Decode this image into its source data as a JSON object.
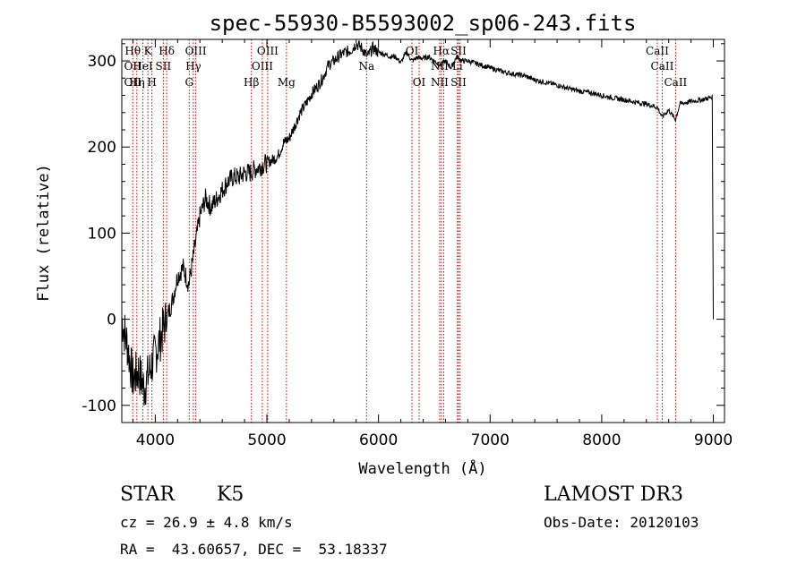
{
  "chart_data": {
    "type": "line",
    "title": "spec-55930-B5593002_sp06-243.fits",
    "xlabel": "Wavelength (Å)",
    "ylabel": "Flux (relative)",
    "xlim": [
      3700,
      9100
    ],
    "ylim": [
      -120,
      325
    ],
    "x_ticks": [
      4000,
      5000,
      6000,
      7000,
      8000,
      9000
    ],
    "y_ticks": [
      -100,
      0,
      100,
      200,
      300
    ],
    "grid": false,
    "line_color": "#000000",
    "marker_color": "#cc0000",
    "series": [
      {
        "x": [
          3700,
          3750,
          3800,
          3850,
          3900,
          3950,
          4000,
          4050,
          4100,
          4150,
          4200,
          4250,
          4300,
          4350,
          4400,
          4450,
          4500,
          4550,
          4600,
          4650,
          4700,
          4750,
          4800,
          4850,
          4900,
          4950,
          5000,
          5050,
          5100,
          5150,
          5200,
          5250,
          5300,
          5350,
          5400,
          5450,
          5500,
          5550,
          5600,
          5650,
          5700,
          5750,
          5800,
          5850,
          5900,
          5950,
          6000,
          6050,
          6100,
          6150,
          6200,
          6250,
          6300,
          6350,
          6400,
          6450,
          6500,
          6550,
          6600,
          6650,
          6700,
          6750,
          6800,
          6850,
          6900,
          6950,
          7000,
          7100,
          7200,
          7300,
          7400,
          7500,
          7600,
          7700,
          7800,
          7900,
          8000,
          8100,
          8200,
          8300,
          8400,
          8500,
          8540,
          8600,
          8660,
          8700,
          8800,
          8900,
          8990,
          9000
        ],
        "y": [
          0,
          -30,
          -70,
          -60,
          -80,
          -60,
          -40,
          -20,
          0,
          20,
          50,
          60,
          40,
          80,
          120,
          140,
          130,
          140,
          150,
          160,
          165,
          165,
          170,
          170,
          175,
          178,
          182,
          185,
          190,
          205,
          210,
          225,
          240,
          250,
          262,
          270,
          280,
          295,
          300,
          306,
          310,
          312,
          320,
          315,
          305,
          315,
          310,
          308,
          305,
          305,
          298,
          310,
          300,
          304,
          303,
          305,
          300,
          295,
          300,
          292,
          305,
          300,
          300,
          298,
          296,
          294,
          292,
          288,
          285,
          283,
          278,
          275,
          272,
          268,
          265,
          263,
          260,
          257,
          255,
          252,
          250,
          246,
          235,
          243,
          232,
          250,
          253,
          255,
          258,
          0
        ]
      }
    ],
    "line_markers": [
      {
        "x": 3798,
        "top": "Hθ",
        "mid": "OII",
        "low": "OII"
      },
      {
        "x": 3835,
        "top": "",
        "mid": "",
        "low": "Hη"
      },
      {
        "x": 3889,
        "top": "",
        "mid": "HeI",
        "low": ""
      },
      {
        "x": 3934,
        "top": "K",
        "mid": "",
        "low": ""
      },
      {
        "x": 3970,
        "top": "",
        "mid": "",
        "low": "H"
      },
      {
        "x": 4072,
        "top": "",
        "mid": "SII",
        "low": ""
      },
      {
        "x": 4102,
        "top": "Hδ",
        "mid": "",
        "low": ""
      },
      {
        "x": 4304,
        "top": "",
        "mid": "",
        "low": "G"
      },
      {
        "x": 4341,
        "top": "",
        "mid": "Hγ",
        "low": ""
      },
      {
        "x": 4363,
        "top": "OIII",
        "mid": "",
        "low": ""
      },
      {
        "x": 4861,
        "top": "",
        "mid": "",
        "low": "Hβ"
      },
      {
        "x": 4959,
        "top": "",
        "mid": "OIII",
        "low": ""
      },
      {
        "x": 5007,
        "top": "OIII",
        "mid": "",
        "low": ""
      },
      {
        "x": 5175,
        "top": "",
        "mid": "",
        "low": "Mg"
      },
      {
        "x": 5893,
        "top": "",
        "mid": "Na",
        "low": ""
      },
      {
        "x": 6300,
        "top": "OI",
        "mid": "",
        "low": ""
      },
      {
        "x": 6364,
        "top": "",
        "mid": "",
        "low": "OI"
      },
      {
        "x": 6548,
        "top": "",
        "mid": "NII",
        "low": "NII"
      },
      {
        "x": 6563,
        "top": "Hα",
        "mid": "",
        "low": ""
      },
      {
        "x": 6584,
        "top": "",
        "mid": "",
        "low": ""
      },
      {
        "x": 6707,
        "top": "",
        "mid": "Li",
        "low": ""
      },
      {
        "x": 6717,
        "top": "SII",
        "mid": "",
        "low": "SII"
      },
      {
        "x": 6731,
        "top": "",
        "mid": "",
        "low": ""
      },
      {
        "x": 8498,
        "top": "CaII",
        "mid": "",
        "low": ""
      },
      {
        "x": 8542,
        "top": "",
        "mid": "CaII",
        "low": ""
      },
      {
        "x": 8662,
        "top": "",
        "mid": "",
        "low": "CaII"
      }
    ]
  },
  "info": {
    "object_class": "STAR",
    "subclass": "K5",
    "survey": "LAMOST DR3",
    "redshift": "cz = 26.9 ± 4.8 km/s",
    "obs_date": "Obs-Date: 20120103",
    "coords": "RA =  43.60657, DEC =  53.18337"
  }
}
